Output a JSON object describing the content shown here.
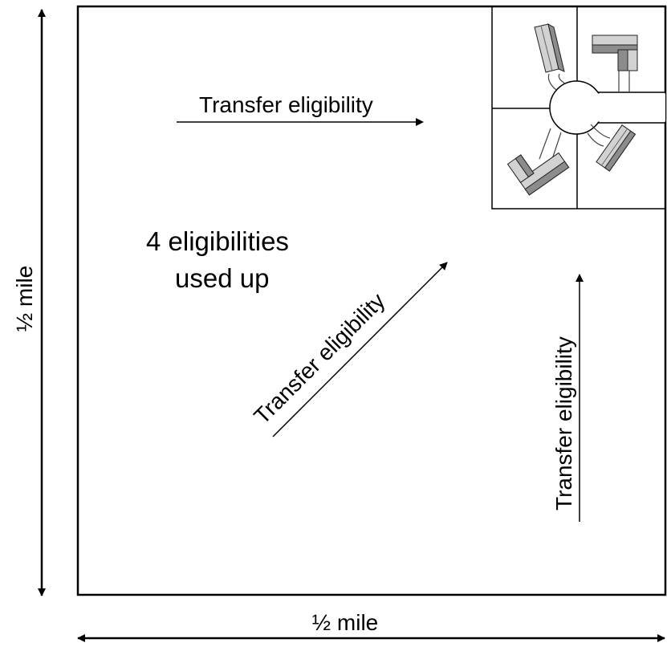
{
  "diagram": {
    "corner_text": [
      "4 eligibilities",
      "used up"
    ],
    "transfer_arrows": [
      {
        "label": "Transfer eligibility"
      },
      {
        "label": "Transfer eligibility"
      },
      {
        "label": "Transfer eligibility"
      }
    ],
    "dimensions": {
      "width_label": "½ mile",
      "height_label": "½ mile"
    },
    "colors": {
      "line": "#000000",
      "building_light": "#d2d2d2",
      "building_dark": "#8c8c8c",
      "road_fill": "#ffffff"
    }
  }
}
